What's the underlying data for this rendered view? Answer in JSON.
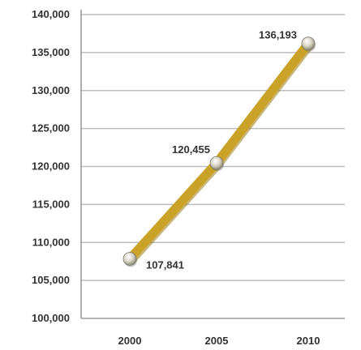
{
  "chart_data": {
    "type": "line",
    "x": [
      "2000",
      "2005",
      "2010"
    ],
    "series": [
      {
        "values": [
          107841,
          120455,
          136193
        ]
      }
    ],
    "data_labels": [
      "107,841",
      "120,455",
      "136,193"
    ],
    "y_ticks": [
      "100,000",
      "105,000",
      "110,000",
      "115,000",
      "120,000",
      "125,000",
      "130,000",
      "135,000",
      "140,000"
    ],
    "ylim": [
      100000,
      140000
    ],
    "y_step": 5000,
    "grid": true,
    "title": "",
    "xlabel": "",
    "ylabel": "",
    "colors": {
      "line": "#C9A227",
      "line_shadow": "#9C7C12",
      "grid": "#BDBDBD",
      "axis": "#9A9A9A",
      "marker": "#D8D4C4",
      "marker_edge": "#7A7A6A"
    }
  }
}
